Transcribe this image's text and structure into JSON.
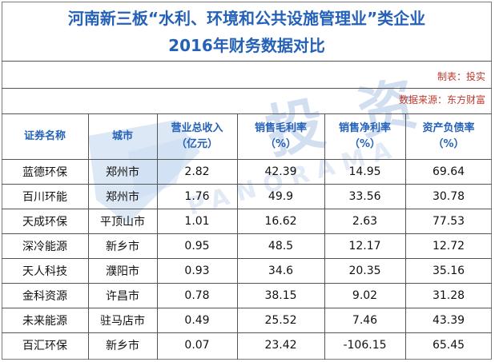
{
  "title": {
    "line1": "河南新三板“水利、环境和公共设施管理业”类企业",
    "line2": "2016年财务数据对比"
  },
  "meta": {
    "maker": "制表：投实",
    "source": "数据来源：东方财富"
  },
  "watermark": {
    "big": "投 资",
    "small": "PANORAMA"
  },
  "columns": [
    {
      "line1": "证券名称",
      "line2": ""
    },
    {
      "line1": "城市",
      "line2": ""
    },
    {
      "line1": "营业总收入",
      "line2": "（亿元）"
    },
    {
      "line1": "销售毛利率",
      "line2": "（%）"
    },
    {
      "line1": "销售净利率",
      "line2": "（%）"
    },
    {
      "line1": "资产负债率",
      "line2": "（%）"
    }
  ],
  "rows": [
    {
      "name": "蓝德环保",
      "city": "郑州市",
      "revenue": "2.82",
      "gross": "42.39",
      "net": "14.95",
      "debt": "69.64"
    },
    {
      "name": "百川环能",
      "city": "郑州市",
      "revenue": "1.76",
      "gross": "49.9",
      "net": "33.56",
      "debt": "30.78"
    },
    {
      "name": "天成环保",
      "city": "平顶山市",
      "revenue": "1.01",
      "gross": "16.62",
      "net": "2.63",
      "debt": "77.53"
    },
    {
      "name": "深冷能源",
      "city": "新乡市",
      "revenue": "0.95",
      "gross": "48.5",
      "net": "12.17",
      "debt": "12.72"
    },
    {
      "name": "天人科技",
      "city": "濮阳市",
      "revenue": "0.93",
      "gross": "34.6",
      "net": "20.35",
      "debt": "35.16"
    },
    {
      "name": "金科资源",
      "city": "许昌市",
      "revenue": "0.78",
      "gross": "38.15",
      "net": "9.02",
      "debt": "31.28"
    },
    {
      "name": "未来能源",
      "city": "驻马店市",
      "revenue": "0.49",
      "gross": "25.52",
      "net": "7.46",
      "debt": "43.39"
    },
    {
      "name": "百汇环保",
      "city": "新乡市",
      "revenue": "0.07",
      "gross": "23.42",
      "net": "-106.15",
      "debt": "65.45"
    }
  ]
}
